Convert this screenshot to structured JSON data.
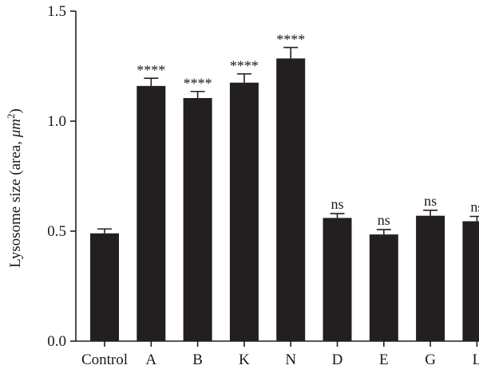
{
  "chart_data": {
    "type": "bar",
    "title": "",
    "xlabel": "",
    "ylabel": "Lysosome size (area, μm²)",
    "ylabel_main": "Lysosome size (area, ",
    "ylabel_unit_mu": "μ",
    "ylabel_unit_m": "m",
    "ylabel_sup": "2",
    "ylabel_close": ")",
    "ylim": [
      0,
      1.5
    ],
    "yticks": [
      0.0,
      0.5,
      1.0,
      1.5
    ],
    "ytick_labels": [
      "0.0",
      "0.5",
      "1.0",
      "1.5"
    ],
    "categories": [
      "Control",
      "A",
      "B",
      "K",
      "N",
      "D",
      "E",
      "G",
      "L"
    ],
    "values": [
      0.49,
      1.16,
      1.105,
      1.175,
      1.285,
      0.56,
      0.485,
      0.57,
      0.545
    ],
    "errors": [
      0.02,
      0.035,
      0.03,
      0.04,
      0.05,
      0.02,
      0.022,
      0.025,
      0.022
    ],
    "significance": [
      "",
      "****",
      "****",
      "****",
      "****",
      "ns",
      "ns",
      "ns",
      "ns"
    ],
    "bar_color": "#231f20",
    "grid": false,
    "legend": "none"
  }
}
